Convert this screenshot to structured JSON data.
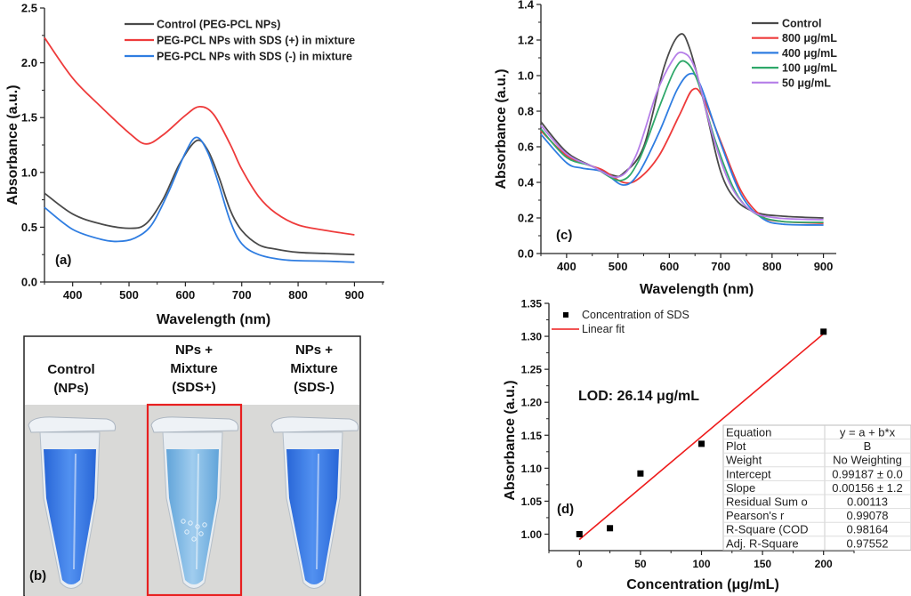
{
  "chart_data": [
    {
      "panel": "(a)",
      "type": "line",
      "xlabel": "Wavelength (nm)",
      "ylabel": "Absorbance (a.u.)",
      "xlim": [
        350,
        953
      ],
      "ylim": [
        0,
        2.5
      ],
      "xticks": [
        "400",
        "500",
        "600",
        "700",
        "800",
        "900"
      ],
      "yticks": [
        "0.0",
        "0.5",
        "1.0",
        "1.5",
        "2.0",
        "2.5"
      ],
      "legend_position": "top-right",
      "series": [
        {
          "name": "Control (PEG-PCL NPs)",
          "color": "#4a4a4a",
          "x": [
            350,
            400,
            450,
            500,
            530,
            560,
            590,
            620,
            640,
            660,
            680,
            700,
            730,
            760,
            800,
            850,
            900
          ],
          "y": [
            0.81,
            0.62,
            0.53,
            0.49,
            0.53,
            0.75,
            1.08,
            1.29,
            1.2,
            0.95,
            0.65,
            0.47,
            0.34,
            0.3,
            0.27,
            0.26,
            0.25
          ]
        },
        {
          "name": "PEG-PCL NPs with SDS (+) in mixture",
          "color": "#ee3b3b",
          "x": [
            350,
            400,
            450,
            500,
            530,
            560,
            600,
            625,
            650,
            680,
            700,
            730,
            760,
            800,
            850,
            900
          ],
          "y": [
            2.23,
            1.86,
            1.6,
            1.36,
            1.26,
            1.34,
            1.52,
            1.6,
            1.53,
            1.25,
            1.03,
            0.78,
            0.63,
            0.52,
            0.47,
            0.43
          ]
        },
        {
          "name": "PEG-PCL NPs with SDS (-) in mixture",
          "color": "#2f7de1",
          "x": [
            350,
            400,
            450,
            480,
            510,
            540,
            570,
            600,
            620,
            640,
            660,
            680,
            700,
            730,
            780,
            850,
            900
          ],
          "y": [
            0.68,
            0.48,
            0.39,
            0.37,
            0.4,
            0.52,
            0.82,
            1.18,
            1.32,
            1.18,
            0.88,
            0.55,
            0.35,
            0.25,
            0.2,
            0.19,
            0.18
          ]
        }
      ]
    },
    {
      "panel": "(c)",
      "type": "line",
      "xlabel": "Wavelength (nm)",
      "ylabel": "Absorbance (a.u.)",
      "xlim": [
        350,
        925
      ],
      "ylim": [
        0,
        1.4
      ],
      "xticks": [
        "400",
        "500",
        "600",
        "700",
        "800",
        "900"
      ],
      "yticks": [
        "0.0",
        "0.2",
        "0.4",
        "0.6",
        "0.8",
        "1.0",
        "1.2",
        "1.4"
      ],
      "legend_position": "top-right",
      "series": [
        {
          "name": "Control",
          "color": "#4a4a4a",
          "x": [
            350,
            400,
            450,
            490,
            510,
            550,
            590,
            620,
            640,
            670,
            700,
            730,
            770,
            820,
            900
          ],
          "y": [
            0.74,
            0.57,
            0.49,
            0.44,
            0.45,
            0.6,
            1.05,
            1.23,
            1.15,
            0.82,
            0.46,
            0.3,
            0.23,
            0.21,
            0.2
          ]
        },
        {
          "name": "800 μg/mL",
          "color": "#ee3b3b",
          "x": [
            350,
            400,
            440,
            470,
            510,
            540,
            580,
            620,
            645,
            665,
            700,
            740,
            780,
            820,
            900
          ],
          "y": [
            0.69,
            0.55,
            0.5,
            0.47,
            0.4,
            0.42,
            0.55,
            0.78,
            0.92,
            0.88,
            0.63,
            0.35,
            0.21,
            0.18,
            0.17
          ]
        },
        {
          "name": "400 μg/mL",
          "color": "#2f7de1",
          "x": [
            350,
            400,
            430,
            470,
            510,
            540,
            580,
            615,
            640,
            660,
            700,
            740,
            780,
            820,
            900
          ],
          "y": [
            0.67,
            0.51,
            0.48,
            0.46,
            0.385,
            0.45,
            0.68,
            0.92,
            1.01,
            0.95,
            0.62,
            0.33,
            0.2,
            0.165,
            0.16
          ]
        },
        {
          "name": "100 μg/mL",
          "color": "#2fa86a",
          "x": [
            350,
            400,
            450,
            505,
            540,
            580,
            610,
            630,
            655,
            690,
            730,
            770,
            820,
            900
          ],
          "y": [
            0.7,
            0.54,
            0.49,
            0.41,
            0.52,
            0.82,
            1.03,
            1.08,
            0.97,
            0.63,
            0.34,
            0.22,
            0.18,
            0.175
          ]
        },
        {
          "name": "50 μg/mL",
          "color": "#b57ee8",
          "x": [
            350,
            400,
            450,
            500,
            535,
            575,
            605,
            625,
            650,
            685,
            720,
            760,
            810,
            900
          ],
          "y": [
            0.72,
            0.56,
            0.49,
            0.43,
            0.55,
            0.9,
            1.08,
            1.13,
            1.04,
            0.66,
            0.38,
            0.24,
            0.2,
            0.19
          ]
        }
      ]
    },
    {
      "panel": "(d)",
      "type": "scatter",
      "xlabel": "Concentration (μg/mL)",
      "ylabel": "Absorbance (a.u.)",
      "xlim": [
        -25,
        225
      ],
      "ylim": [
        0.975,
        1.35
      ],
      "xticks": [
        "0",
        "50",
        "100",
        "150",
        "200"
      ],
      "yticks": [
        "1.00",
        "1.05",
        "1.10",
        "1.15",
        "1.20",
        "1.25",
        "1.30",
        "1.35"
      ],
      "legend_position": "top-left",
      "points": {
        "name": "Concentration of SDS",
        "color": "#000000",
        "x": [
          0,
          25,
          50,
          100,
          200
        ],
        "y": [
          1.0,
          1.009,
          1.092,
          1.137,
          1.307
        ]
      },
      "fit": {
        "name": "Linear fit",
        "color": "#ee1c1c",
        "intercept": 0.99187,
        "slope": 0.00156,
        "x": [
          0,
          200
        ]
      },
      "annotation": "LOD: 26.14 μg/mL",
      "stats_table": [
        [
          "Equation",
          "y = a + b*x"
        ],
        [
          "Plot",
          "B"
        ],
        [
          "Weight",
          "No Weighting"
        ],
        [
          "Intercept",
          "0.99187 ± 0.0"
        ],
        [
          "Slope",
          "0.00156 ± 1.2"
        ],
        [
          "Residual Sum o",
          "0.00113"
        ],
        [
          "Pearson's r",
          "0.99078"
        ],
        [
          "R-Square (COD",
          "0.98164"
        ],
        [
          "Adj. R-Square",
          "0.97552"
        ]
      ]
    }
  ],
  "photo_panel": {
    "panel": "(b)",
    "highlight_color": "#e82020",
    "liquid_color": "#2a6fe0",
    "tubes": [
      {
        "label_lines": [
          "Control",
          "(NPs)"
        ]
      },
      {
        "label_lines": [
          "NPs +",
          "Mixture",
          "(SDS+)"
        ]
      },
      {
        "label_lines": [
          "NPs +",
          "Mixture",
          "(SDS-)"
        ]
      }
    ]
  }
}
